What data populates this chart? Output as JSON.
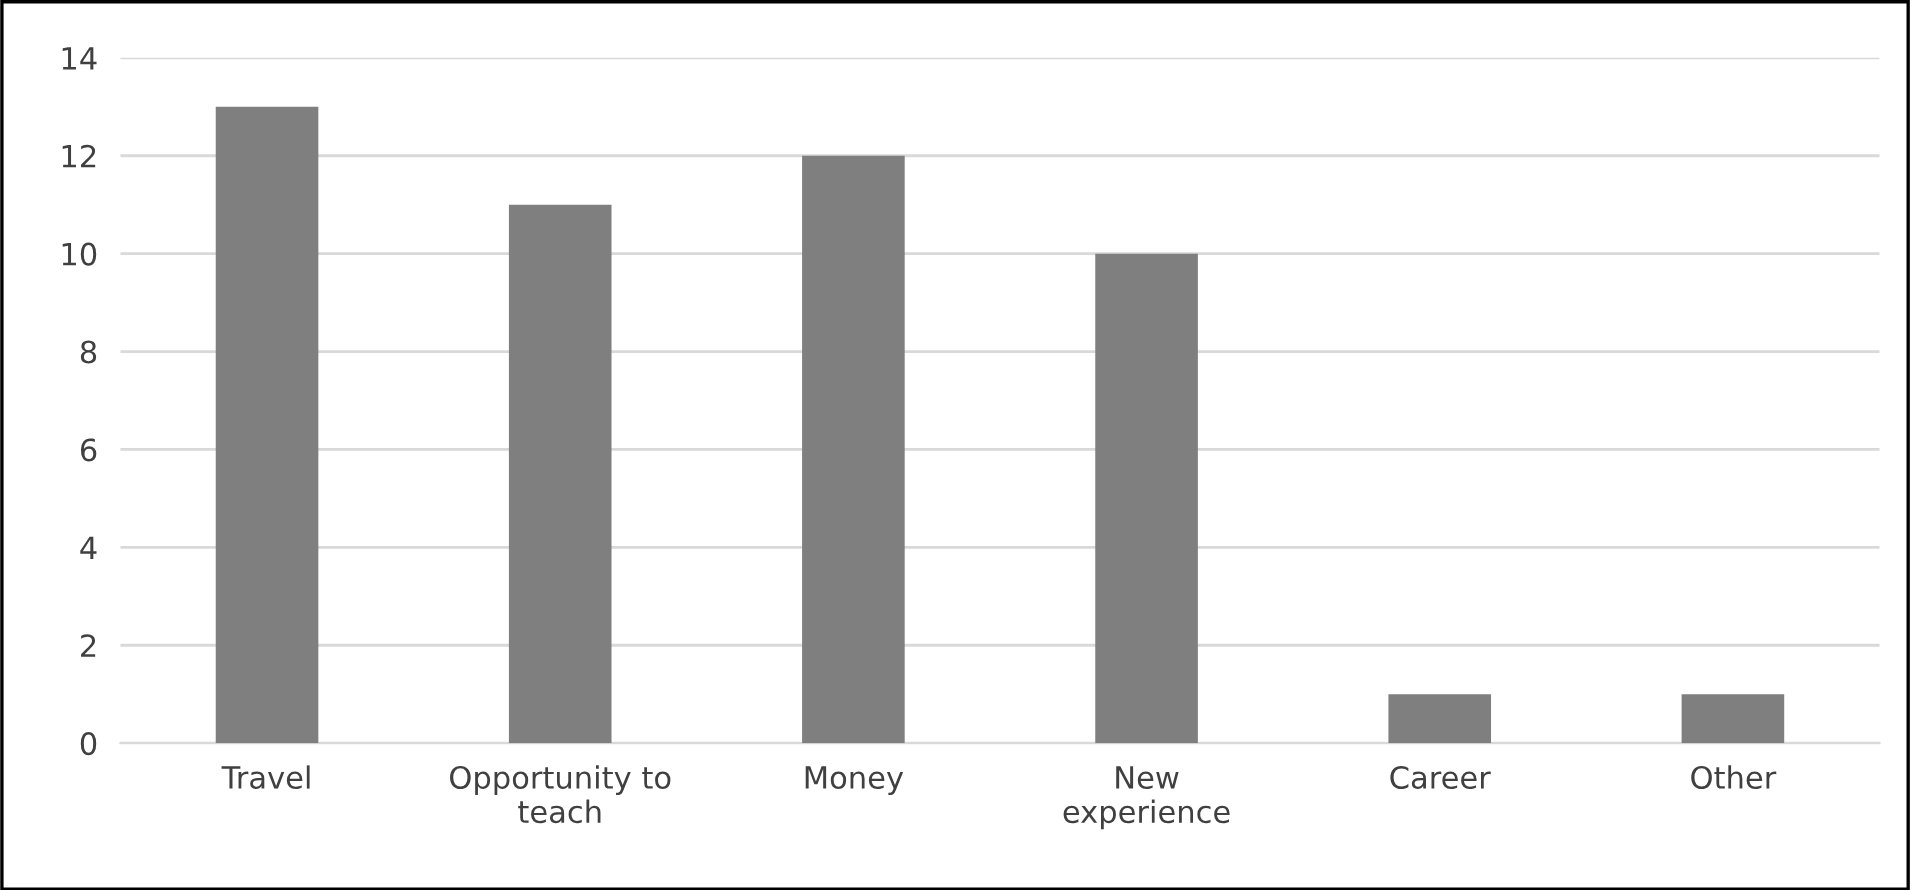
{
  "chart_data": {
    "type": "bar",
    "categories": [
      "Travel",
      "Opportunity to teach",
      "Money",
      "New experience",
      "Career",
      "Other"
    ],
    "values": [
      13,
      11,
      12,
      10,
      1,
      1
    ],
    "color": "#7f7f7f",
    "ylim": [
      0,
      14
    ],
    "yticks": [
      0,
      2,
      4,
      6,
      8,
      10,
      12,
      14
    ],
    "grid": "y"
  }
}
